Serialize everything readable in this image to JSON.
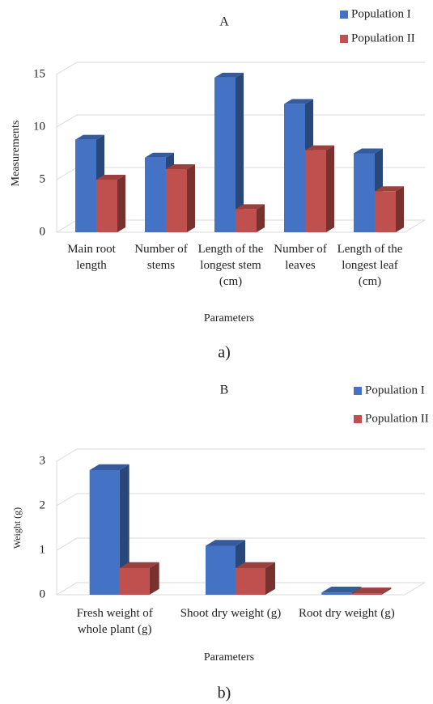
{
  "chart_data": [
    {
      "type": "bar",
      "title": "A",
      "caption": "a)",
      "x_label": "Parameters",
      "y_label": "Measurements",
      "categories": [
        "Main root length",
        "Number of stems",
        "Length of the longest stem (cm)",
        "Number of leaves",
        "Length of the longest leaf (cm)"
      ],
      "series": [
        {
          "name": "Population I",
          "color": "#4472c4",
          "values": [
            8.8,
            7.1,
            14.7,
            12.2,
            7.5
          ]
        },
        {
          "name": "Population II",
          "color": "#c0504d",
          "values": [
            5.0,
            6.0,
            2.2,
            7.8,
            3.9
          ]
        }
      ],
      "ylim": [
        0,
        15
      ],
      "yticks": [
        0,
        5,
        10,
        15
      ],
      "grid": true,
      "legend": "top-right"
    },
    {
      "type": "bar",
      "title": "B",
      "caption": "b)",
      "x_label": "Parameters",
      "y_label": "Weight (g)",
      "categories": [
        "Fresh weight of whole plant (g)",
        "Shoot dry weight (g)",
        "Root dry weight (g)"
      ],
      "series": [
        {
          "name": "Population I",
          "color": "#4472c4",
          "values": [
            2.8,
            1.1,
            0.05
          ]
        },
        {
          "name": "Population II",
          "color": "#c0504d",
          "values": [
            0.6,
            0.6,
            0.03
          ]
        }
      ],
      "ylim": [
        0,
        3
      ],
      "yticks": [
        0,
        1,
        2,
        3
      ],
      "grid": true,
      "legend": "top-right"
    }
  ]
}
